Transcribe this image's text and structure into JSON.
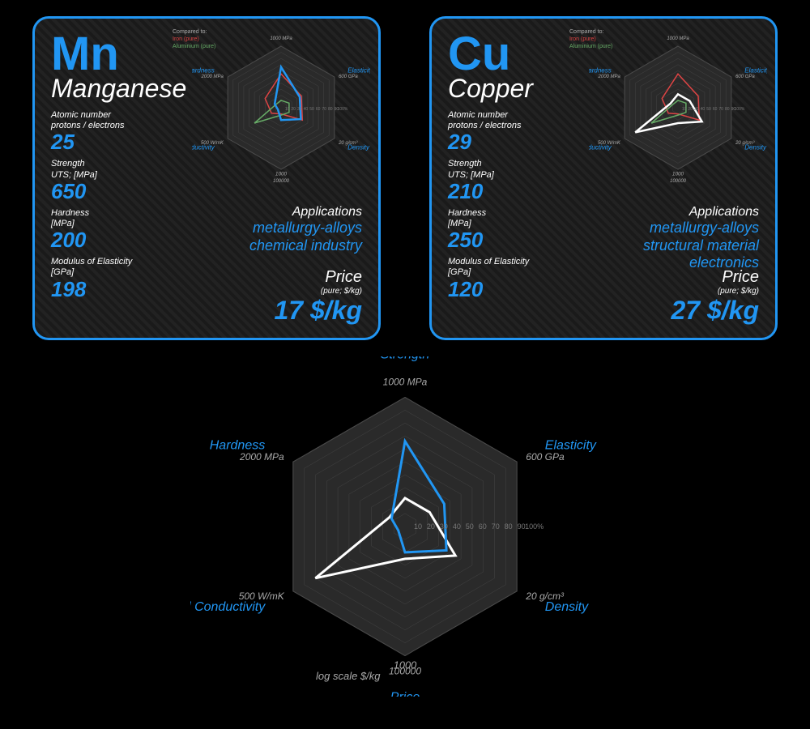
{
  "colors": {
    "accent": "#2196f3",
    "white": "#fff",
    "gray": "#aaa",
    "mn": "#2196f3",
    "cu": "#fff",
    "iron": "#d44",
    "alum": "#6a6",
    "grid": "#444",
    "bg": "#2a2a2a"
  },
  "axes": {
    "labels": [
      "Strength",
      "Elasticity",
      "Density",
      "Price",
      "Thermal Conductivity",
      "Hardness"
    ],
    "max": [
      "1000 MPa",
      "600 GPa",
      "20 g/cm³",
      "100000",
      "500 W/mK",
      "2000 MPa"
    ],
    "ticks": [
      "10",
      "20",
      "30",
      "40",
      "50",
      "60",
      "70",
      "80",
      "90",
      "100%"
    ]
  },
  "compare": {
    "title": "Compared to:",
    "iron": "Iron (pure)",
    "alum": "Aluminium (pure)"
  },
  "big": {
    "axes": [
      "Strength",
      "Elasticity",
      "Density",
      "Price",
      "Thermal Conductivity",
      "Hardness"
    ],
    "axmax": [
      "1000 MPa",
      "600 GPa",
      "20 g/cm³",
      "100000",
      "500 W/mK",
      "2000 MPa"
    ],
    "mid": "1000",
    "sub": "log scale $/kg",
    "mn": [
      0.66,
      0.35,
      0.37,
      0.2,
      0.06,
      0.12
    ],
    "cu": [
      0.22,
      0.22,
      0.45,
      0.25,
      0.8,
      0.14
    ]
  },
  "cards": [
    {
      "symbol": "Mn",
      "symColor": "#2196f3",
      "name": "Manganese",
      "nameColor": "#fff",
      "props": [
        {
          "label": "Atomic number\nprotons / electrons",
          "value": "25"
        },
        {
          "label": "Strength\nUTS; [MPa]",
          "value": "650"
        },
        {
          "label": "Hardness\n[MPa]",
          "value": "200"
        },
        {
          "label": "Modulus of Elasticity\n[GPa]",
          "value": "198"
        }
      ],
      "apps": {
        "title": "Applications",
        "lines": [
          "metallurgy-alloys",
          "chemical industry"
        ]
      },
      "price": {
        "label": "Price",
        "sub": "(pure; $/kg)",
        "value": "17 $/kg"
      },
      "radar": {
        "self": [
          0.66,
          0.35,
          0.37,
          0.2,
          0.06,
          0.12
        ],
        "selfColor": "#2196f3",
        "iron": [
          0.55,
          0.38,
          0.4,
          0.1,
          0.18,
          0.3
        ],
        "alum": [
          0.12,
          0.15,
          0.15,
          0.12,
          0.5,
          0.1
        ]
      }
    },
    {
      "symbol": "Cu",
      "symColor": "#2196f3",
      "name": "Copper",
      "nameColor": "#fff",
      "props": [
        {
          "label": "Atomic number\nprotons / electrons",
          "value": "29"
        },
        {
          "label": "Strength\nUTS; [MPa]",
          "value": "210"
        },
        {
          "label": "Hardness\n[MPa]",
          "value": "250"
        },
        {
          "label": "Modulus of Elasticity\n[GPa]",
          "value": "120"
        }
      ],
      "apps": {
        "title": "Applications",
        "lines": [
          "metallurgy-alloys",
          "structural material",
          "electronics"
        ]
      },
      "price": {
        "label": "Price",
        "sub": "(pure; $/kg)",
        "value": "27 $/kg"
      },
      "radar": {
        "self": [
          0.22,
          0.22,
          0.45,
          0.25,
          0.8,
          0.14
        ],
        "selfColor": "#fff",
        "iron": [
          0.55,
          0.38,
          0.4,
          0.1,
          0.18,
          0.3
        ],
        "alum": [
          0.12,
          0.15,
          0.15,
          0.12,
          0.5,
          0.1
        ]
      }
    }
  ]
}
